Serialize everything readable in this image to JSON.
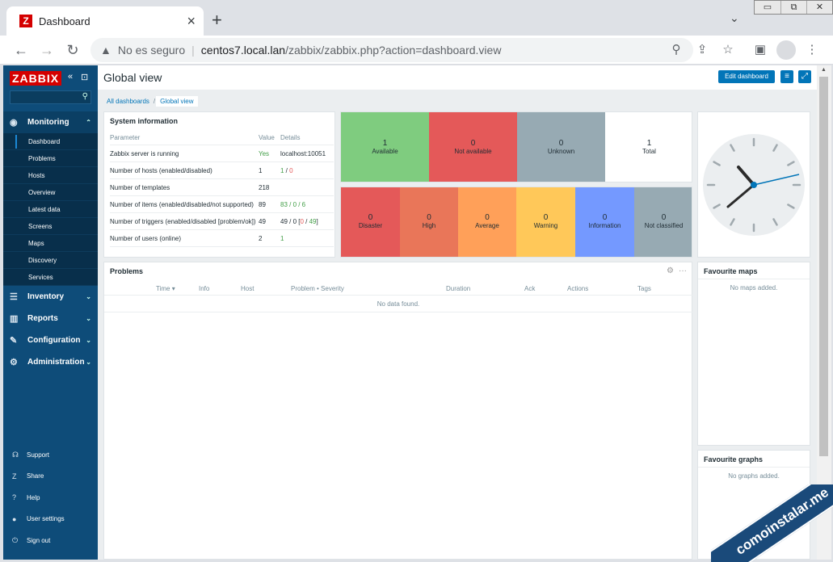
{
  "browser": {
    "tab_title": "Dashboard",
    "tab_close": "×",
    "new_tab": "+",
    "tab_menu": "⌄",
    "security_text": "No es seguro",
    "url_host": "centos7.local.lan",
    "url_path": "/zabbix/zabbix.php?action=dashboard.view",
    "back": "←",
    "forward": "→",
    "reload": "↻",
    "win_min": "▭",
    "win_max": "⧉",
    "win_close": "✕"
  },
  "sidebar": {
    "logo": "ZABBIX",
    "menu": [
      {
        "label": "Monitoring",
        "icon": "eye-icon",
        "glyph": "◉",
        "chev": "⌃"
      },
      {
        "label": "Inventory",
        "icon": "list-icon",
        "glyph": "☰",
        "chev": "⌄"
      },
      {
        "label": "Reports",
        "icon": "bar-chart-icon",
        "glyph": "▥",
        "chev": "⌄"
      },
      {
        "label": "Configuration",
        "icon": "wrench-icon",
        "glyph": "✎",
        "chev": "⌄"
      },
      {
        "label": "Administration",
        "icon": "gear-box-icon",
        "glyph": "⚙",
        "chev": "⌄"
      }
    ],
    "monitoring_sub": [
      "Dashboard",
      "Problems",
      "Hosts",
      "Overview",
      "Latest data",
      "Screens",
      "Maps",
      "Discovery",
      "Services"
    ],
    "bottom": [
      {
        "label": "Support",
        "glyph": "☊"
      },
      {
        "label": "Share",
        "glyph": "Z"
      },
      {
        "label": "Help",
        "glyph": "?"
      },
      {
        "label": "User settings",
        "glyph": "●"
      },
      {
        "label": "Sign out",
        "glyph": "⏻"
      }
    ]
  },
  "main": {
    "title": "Global view",
    "edit_button": "Edit dashboard",
    "breadcrumbs": [
      "All dashboards",
      "Global view"
    ],
    "system_info": {
      "title": "System information",
      "headers": [
        "Parameter",
        "Value",
        "Details"
      ],
      "rows": [
        {
          "param": "Zabbix server is running",
          "value": "Yes",
          "details": "localhost:10051"
        },
        {
          "param": "Number of hosts (enabled/disabled)",
          "value": "1",
          "details_a": "1",
          "details_b": " / ",
          "details_c": "0"
        },
        {
          "param": "Number of templates",
          "value": "218",
          "details": ""
        },
        {
          "param": "Number of items (enabled/disabled/not supported)",
          "value": "89",
          "details": "83 / 0 / 6"
        },
        {
          "param": "Number of triggers (enabled/disabled [problem/ok])",
          "value": "49",
          "details_a": "49 / 0 [",
          "details_b": "0",
          "details_c": " / ",
          "details_d": "49",
          "details_e": "]"
        },
        {
          "param": "Number of users (online)",
          "value": "2",
          "details": "1"
        }
      ]
    },
    "availability": [
      {
        "count": "1",
        "label": "Available",
        "color": "#7fcc7f"
      },
      {
        "count": "0",
        "label": "Not available",
        "color": "#e45959"
      },
      {
        "count": "0",
        "label": "Unknown",
        "color": "#97aab3"
      },
      {
        "count": "1",
        "label": "Total",
        "color": "#ffffff"
      }
    ],
    "severity": [
      {
        "count": "0",
        "label": "Disaster",
        "color": "#e45959"
      },
      {
        "count": "0",
        "label": "High",
        "color": "#e97659"
      },
      {
        "count": "0",
        "label": "Average",
        "color": "#ffa059"
      },
      {
        "count": "0",
        "label": "Warning",
        "color": "#ffc859"
      },
      {
        "count": "0",
        "label": "Information",
        "color": "#7499ff"
      },
      {
        "count": "0",
        "label": "Not classified",
        "color": "#97aab3"
      }
    ],
    "problems": {
      "title": "Problems",
      "columns": [
        "Time ▾",
        "Info",
        "Host",
        "Problem • Severity",
        "Duration",
        "Ack",
        "Actions",
        "Tags"
      ],
      "empty": "No data found."
    },
    "fav_maps": {
      "title": "Favourite maps",
      "empty": "No maps added."
    },
    "fav_graphs": {
      "title": "Favourite graphs",
      "empty": "No graphs added."
    }
  },
  "watermark": "comoinstalar.me"
}
